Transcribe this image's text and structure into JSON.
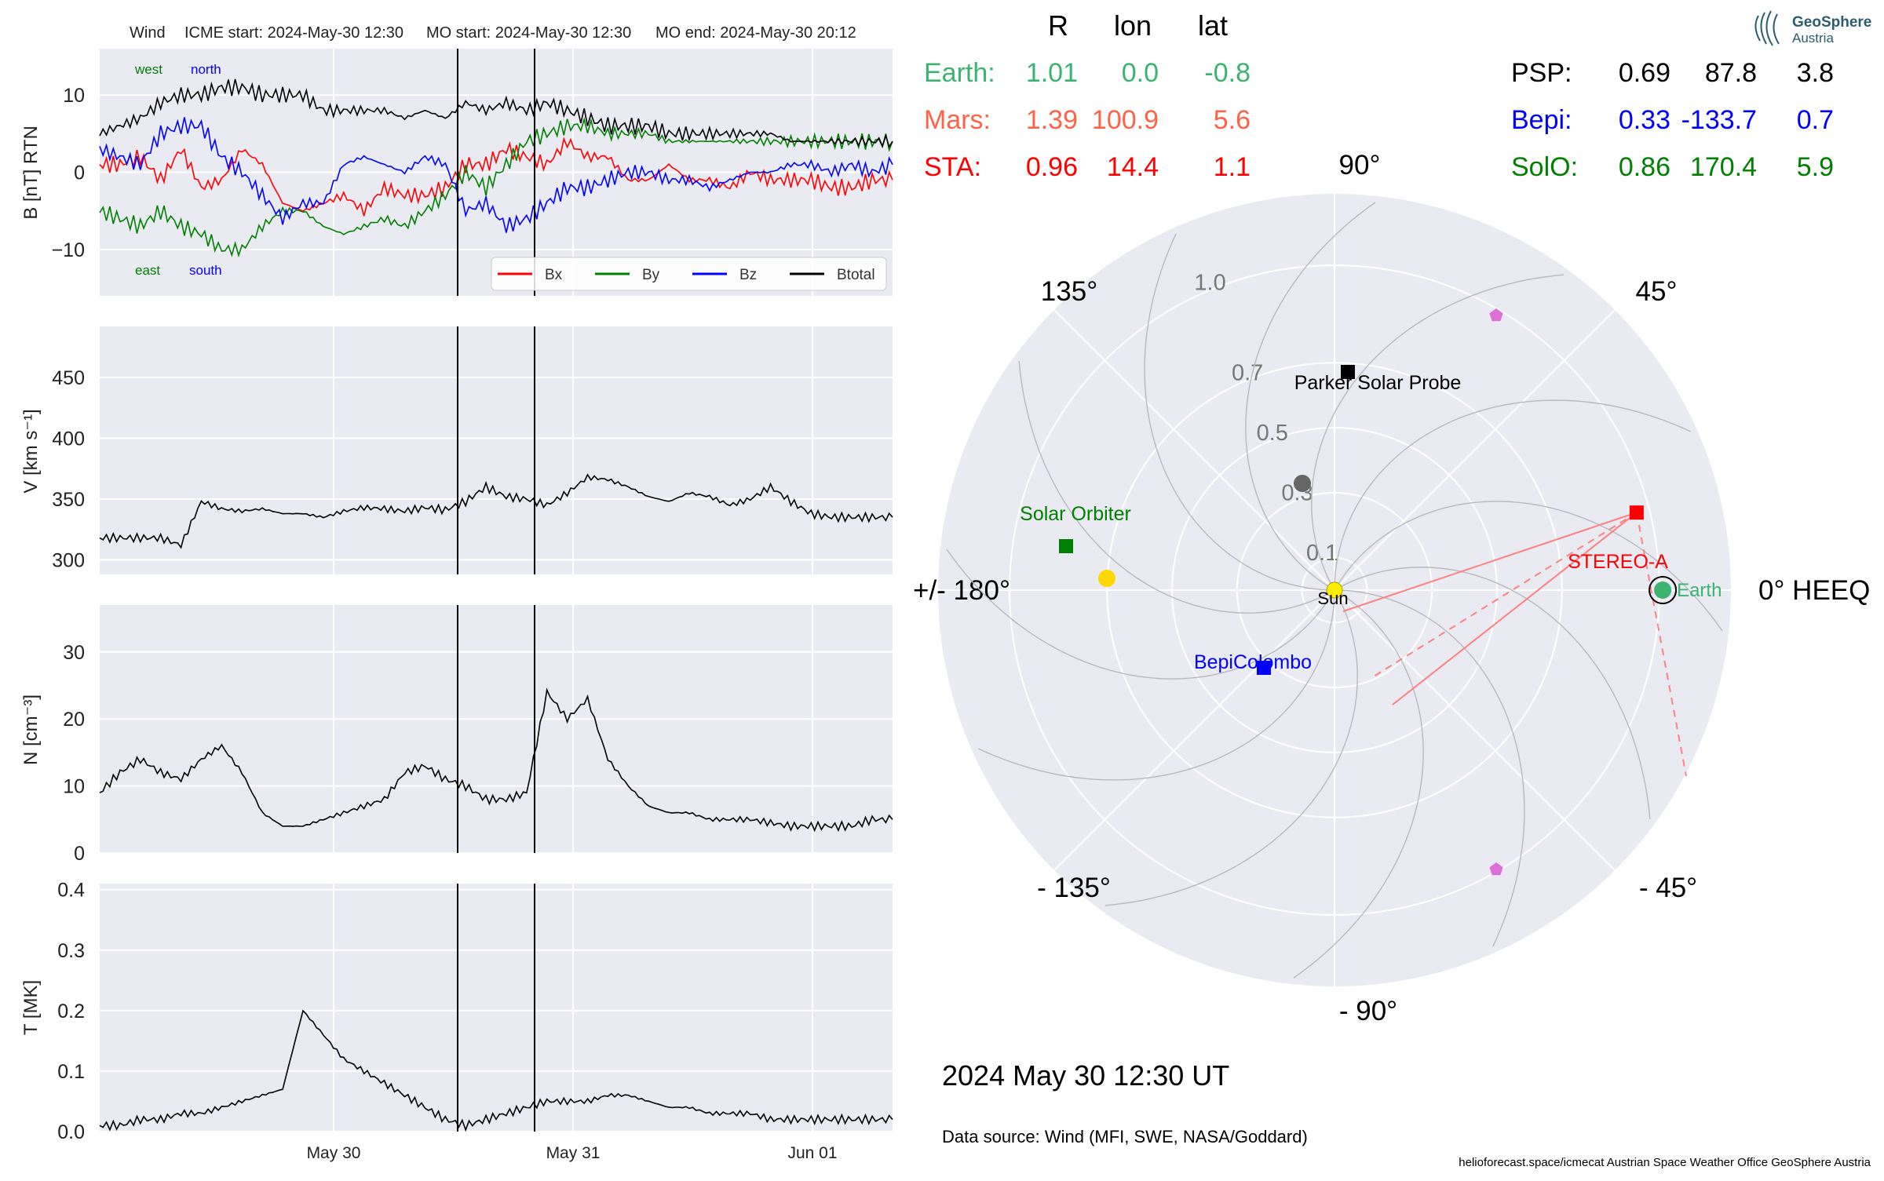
{
  "header": {
    "spacecraft": "Wind",
    "icme_start": "ICME start: 2024-May-30 12:30",
    "mo_start": "MO start: 2024-May-30 12:30",
    "mo_end": "MO end: 2024-May-30 20:12"
  },
  "chart_data": [
    {
      "type": "line",
      "panel": "B",
      "ylabel": "B [nT] RTN",
      "ylim": [
        -16,
        16
      ],
      "yticks": [
        "−10",
        "0",
        "10"
      ],
      "ytick_values": [
        -10,
        0,
        10
      ],
      "annotations": {
        "west": "west",
        "north": "north",
        "east": "east",
        "south": "south"
      },
      "legend": [
        "Bx",
        "By",
        "Bz",
        "Btotal"
      ],
      "legend_position": "lower-right",
      "series": [
        {
          "name": "Bx",
          "color": "#ff0000",
          "values": [
            1,
            1,
            2,
            -1,
            3,
            -2,
            -1,
            3,
            1,
            -4,
            -5,
            -4,
            -3,
            -5,
            -2,
            -3,
            -3,
            -2,
            1,
            1,
            3,
            2,
            1,
            4,
            2,
            2,
            -1,
            -1,
            1,
            -1,
            -1,
            -2,
            0,
            -1,
            -1,
            -1,
            -2,
            -2,
            -1,
            -1
          ]
        },
        {
          "name": "By",
          "color": "#008000",
          "values": [
            -5,
            -6,
            -7,
            -5,
            -7,
            -8,
            -10,
            -10,
            -7,
            -5,
            -5,
            -7,
            -8,
            -7,
            -6,
            -7,
            -5,
            -3,
            0,
            -2,
            1,
            4,
            5,
            6,
            6,
            5,
            5,
            5,
            4,
            4,
            4,
            4,
            4,
            4,
            4,
            4,
            4,
            4,
            4,
            4
          ]
        },
        {
          "name": "Bz",
          "color": "#0000ff",
          "values": [
            3,
            2,
            1,
            5,
            6,
            6,
            2,
            0,
            -3,
            -6,
            -4,
            -4,
            1,
            2,
            1,
            0,
            2,
            1,
            -5,
            -4,
            -7,
            -6,
            -4,
            -2,
            -2,
            -1,
            0,
            0,
            -1,
            -1,
            -2,
            -1,
            0,
            0,
            1,
            1,
            0,
            1,
            0,
            1
          ]
        },
        {
          "name": "Btotal",
          "color": "#000000",
          "values": [
            5,
            6,
            7,
            9,
            10,
            10,
            11,
            11,
            10,
            10,
            10,
            8,
            8,
            8,
            8,
            7,
            8,
            7,
            9,
            8,
            9,
            8,
            9,
            8,
            7,
            6,
            6,
            6,
            5,
            5,
            5,
            5,
            5,
            5,
            4,
            4,
            4,
            4,
            4,
            4
          ]
        }
      ]
    },
    {
      "type": "line",
      "panel": "V",
      "ylabel": "V [km s⁻¹]",
      "ylim": [
        288,
        492
      ],
      "yticks": [
        "300",
        "350",
        "400",
        "450"
      ],
      "ytick_values": [
        300,
        350,
        400,
        450
      ],
      "series": [
        {
          "color": "#000000",
          "values": [
            318,
            318,
            318,
            318,
            312,
            348,
            342,
            340,
            342,
            338,
            338,
            335,
            340,
            343,
            342,
            340,
            343,
            341,
            348,
            360,
            352,
            350,
            345,
            355,
            368,
            366,
            360,
            352,
            348,
            355,
            352,
            345,
            350,
            360,
            348,
            338,
            335,
            335,
            335,
            335
          ]
        }
      ]
    },
    {
      "type": "line",
      "panel": "N",
      "ylabel": "N [cm⁻³]",
      "ylim": [
        0,
        37
      ],
      "yticks": [
        "0",
        "10",
        "20",
        "30"
      ],
      "ytick_values": [
        0,
        10,
        20,
        30
      ],
      "series": [
        {
          "color": "#000000",
          "values": [
            9,
            12,
            14,
            12,
            11,
            14,
            16,
            12,
            6,
            4,
            4,
            5,
            6,
            7,
            8,
            12,
            13,
            11,
            10,
            8,
            8,
            9,
            24,
            20,
            23,
            14,
            10,
            7,
            6,
            6,
            5,
            5,
            5,
            4.5,
            4,
            4,
            4,
            4,
            5,
            5
          ]
        }
      ]
    },
    {
      "type": "line",
      "panel": "T",
      "ylabel": "T [MK]",
      "ylim": [
        0,
        0.41
      ],
      "yticks": [
        "0.0",
        "0.1",
        "0.2",
        "0.3",
        "0.4"
      ],
      "ytick_values": [
        0,
        0.1,
        0.2,
        0.3,
        0.4
      ],
      "xticks": [
        "May 30",
        "May 31",
        "Jun 01"
      ],
      "series": [
        {
          "color": "#000000",
          "values": [
            0.01,
            0.01,
            0.02,
            0.02,
            0.03,
            0.03,
            0.04,
            0.05,
            0.06,
            0.07,
            0.2,
            0.16,
            0.12,
            0.1,
            0.08,
            0.06,
            0.04,
            0.02,
            0.01,
            0.02,
            0.03,
            0.04,
            0.05,
            0.05,
            0.05,
            0.06,
            0.06,
            0.05,
            0.04,
            0.04,
            0.03,
            0.03,
            0.03,
            0.02,
            0.02,
            0.02,
            0.02,
            0.02,
            0.02,
            0.02
          ]
        }
      ]
    },
    {
      "type": "scatter",
      "panel": "orbit-polar",
      "angle_labels": [
        "90°",
        "45°",
        "0° HEEQ",
        "- 45°",
        "- 90°",
        "- 135°",
        "+/- 180°",
        "135°"
      ],
      "angle_values": [
        90,
        45,
        0,
        -45,
        -90,
        -135,
        180,
        135
      ],
      "radial_labels": [
        "0.1",
        "0.3",
        "0.5",
        "0.7",
        "1.0"
      ],
      "radial_values": [
        0.1,
        0.3,
        0.5,
        0.7,
        1.0
      ],
      "points": [
        {
          "name": "Sun",
          "r": 0,
          "lon": 0,
          "color": "#ffee00"
        },
        {
          "name": "Earth",
          "r": 1.01,
          "lon": 0.0,
          "color": "#3cb371"
        },
        {
          "name": "STEREO-A",
          "r": 0.96,
          "lon": 14.4,
          "color": "#ff0000"
        },
        {
          "name": "Parker Solar Probe",
          "r": 0.69,
          "lon": 87.8,
          "color": "#000000"
        },
        {
          "name": "BepiColombo",
          "r": 0.33,
          "lon": -133.7,
          "color": "#0000ff"
        },
        {
          "name": "Solar Orbiter",
          "r": 0.86,
          "lon": 170.4,
          "color": "#008000"
        }
      ]
    }
  ],
  "positions_table": {
    "headers": [
      "R",
      "lon",
      "lat"
    ],
    "left": [
      {
        "name": "Earth:",
        "r": "1.01",
        "lon": "0.0",
        "lat": "-0.8",
        "color": "#3cb371"
      },
      {
        "name": "Mars:",
        "r": "1.39",
        "lon": "100.9",
        "lat": "5.6",
        "color": "#ff6347"
      },
      {
        "name": "STA:",
        "r": "0.96",
        "lon": "14.4",
        "lat": "1.1",
        "color": "#ff0000"
      }
    ],
    "right": [
      {
        "name": "PSP:",
        "r": "0.69",
        "lon": "87.8",
        "lat": "3.8",
        "color": "#000000"
      },
      {
        "name": "Bepi:",
        "r": "0.33",
        "lon": "-133.7",
        "lat": "0.7",
        "color": "#0000ff"
      },
      {
        "name": "SolO:",
        "r": "0.86",
        "lon": "170.4",
        "lat": "5.9",
        "color": "#008000"
      }
    ]
  },
  "footer": {
    "datetime": "2024 May 30  12:30 UT",
    "source": "Data source: Wind (MFI, SWE, NASA/Goddard)",
    "credits": "helioforecast.space/icmecat   Austrian Space Weather Office   GeoSphere Austria"
  },
  "logo": {
    "line1": "GeoSphere",
    "line2": "Austria"
  }
}
